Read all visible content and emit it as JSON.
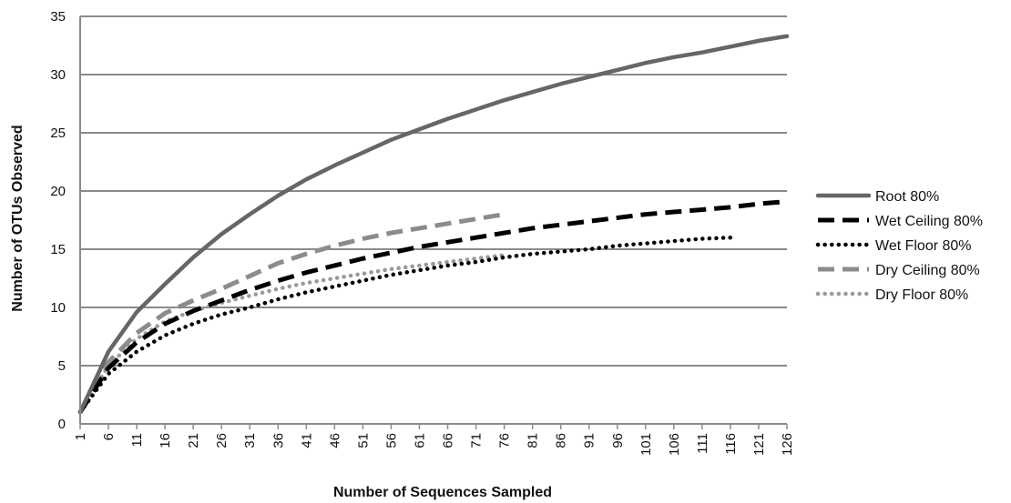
{
  "chart_data": {
    "type": "line",
    "xlabel": "Number of Sequences Sampled",
    "ylabel": "Number of OTUs Observed",
    "ylim": [
      0,
      35
    ],
    "yticks": [
      0,
      5,
      10,
      15,
      20,
      25,
      30,
      35
    ],
    "xlim": [
      1,
      126
    ],
    "xticks": [
      1,
      6,
      11,
      16,
      21,
      26,
      31,
      36,
      41,
      46,
      51,
      56,
      61,
      66,
      71,
      76,
      81,
      86,
      91,
      96,
      101,
      106,
      111,
      116,
      121,
      126
    ],
    "grid": true,
    "legend_position": "right",
    "series": [
      {
        "name": "Root 80%",
        "color": "#666666",
        "style": "solid",
        "x": [
          1,
          6,
          11,
          16,
          21,
          26,
          31,
          36,
          41,
          46,
          51,
          56,
          61,
          66,
          71,
          76,
          81,
          86,
          91,
          96,
          101,
          106,
          111,
          116,
          121,
          126
        ],
        "y": [
          1.0,
          6.2,
          9.6,
          12.0,
          14.3,
          16.3,
          18.0,
          19.6,
          21.0,
          22.2,
          23.3,
          24.4,
          25.3,
          26.2,
          27.0,
          27.8,
          28.5,
          29.2,
          29.8,
          30.4,
          31.0,
          31.5,
          31.9,
          32.4,
          32.9,
          33.3
        ]
      },
      {
        "name": "Wet Ceiling 80%",
        "color": "#000000",
        "style": "dash",
        "x": [
          1,
          6,
          11,
          16,
          21,
          26,
          31,
          36,
          41,
          46,
          51,
          56,
          61,
          66,
          71,
          76,
          81,
          86,
          91,
          96,
          101,
          106,
          111,
          116,
          121,
          126
        ],
        "y": [
          1.0,
          4.8,
          7.0,
          8.6,
          9.7,
          10.6,
          11.5,
          12.3,
          13.0,
          13.6,
          14.2,
          14.7,
          15.2,
          15.6,
          16.0,
          16.4,
          16.8,
          17.1,
          17.4,
          17.7,
          18.0,
          18.2,
          18.4,
          18.6,
          18.9,
          19.1
        ]
      },
      {
        "name": "Wet Floor 80%",
        "color": "#000000",
        "style": "dot",
        "x": [
          1,
          6,
          11,
          16,
          21,
          26,
          31,
          36,
          41,
          46,
          51,
          56,
          61,
          66,
          71,
          76,
          81,
          86,
          91,
          96,
          101,
          106,
          111,
          116
        ],
        "y": [
          1.0,
          4.3,
          6.2,
          7.6,
          8.6,
          9.4,
          10.0,
          10.7,
          11.3,
          11.8,
          12.3,
          12.8,
          13.2,
          13.6,
          13.9,
          14.3,
          14.6,
          14.8,
          15.0,
          15.3,
          15.5,
          15.7,
          15.9,
          16.0
        ]
      },
      {
        "name": "Dry Ceiling 80%",
        "color": "#8c8c8c",
        "style": "dash",
        "x": [
          1,
          6,
          11,
          16,
          21,
          26,
          31,
          36,
          41,
          46,
          51,
          56,
          61,
          66,
          71,
          76
        ],
        "y": [
          1.0,
          5.3,
          7.8,
          9.5,
          10.6,
          11.6,
          12.7,
          13.8,
          14.6,
          15.3,
          15.9,
          16.4,
          16.8,
          17.2,
          17.6,
          18.0
        ]
      },
      {
        "name": "Dry Floor 80%",
        "color": "#9a9a9a",
        "style": "dot",
        "x": [
          1,
          6,
          11,
          16,
          21,
          26,
          31,
          36,
          41,
          46,
          51,
          56,
          61,
          66,
          71,
          76
        ],
        "y": [
          1.0,
          5.0,
          7.3,
          8.8,
          9.7,
          10.4,
          11.0,
          11.6,
          12.1,
          12.5,
          12.9,
          13.3,
          13.6,
          13.9,
          14.2,
          14.5
        ]
      }
    ]
  }
}
